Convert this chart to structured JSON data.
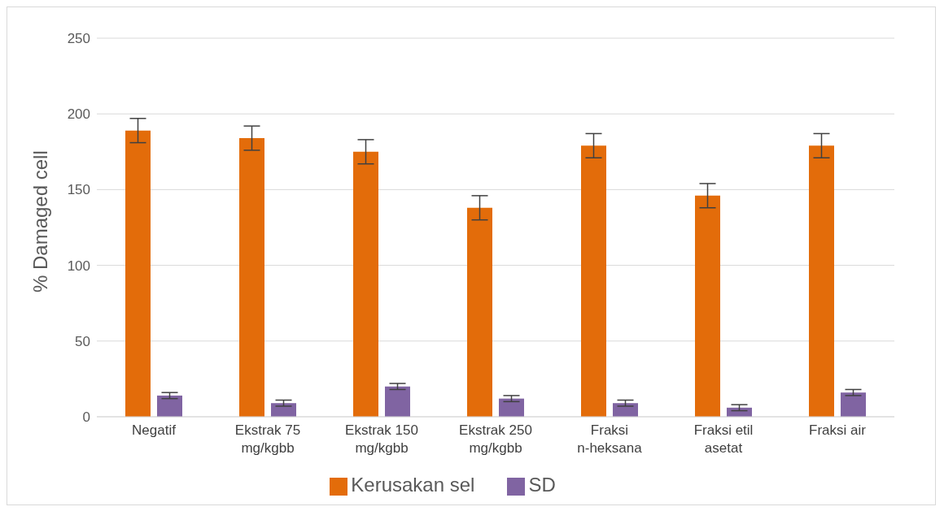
{
  "chart_data": {
    "type": "bar",
    "categories": [
      "Negatif",
      "Ekstrak 75 mg/kgbb",
      "Ekstrak 150 mg/kgbb",
      "Ekstrak 250 mg/kgbb",
      "Fraksi n-heksana",
      "Fraksi etil asetat",
      "Fraksi air"
    ],
    "series": [
      {
        "name": "Kerusakan sel",
        "color": "#e36c0a",
        "values": [
          189,
          184,
          175,
          138,
          179,
          146,
          179
        ],
        "errors": [
          8,
          8,
          8,
          8,
          8,
          8,
          8
        ]
      },
      {
        "name": "SD",
        "color": "#8064a2",
        "values": [
          14,
          9,
          20,
          12,
          9,
          6,
          16
        ],
        "errors": [
          2,
          2,
          2,
          2,
          2,
          2,
          2
        ]
      }
    ],
    "ylabel": "% Damaged cell",
    "ylim": [
      0,
      250
    ],
    "yticks": [
      0,
      50,
      100,
      150,
      200,
      250
    ],
    "grid": "y",
    "legend": "bottom"
  }
}
